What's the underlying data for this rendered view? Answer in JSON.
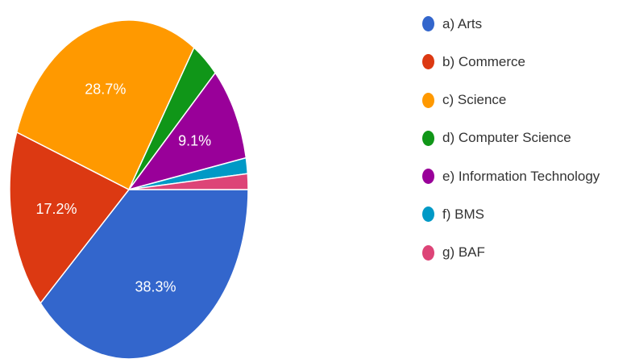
{
  "chart_data": {
    "type": "pie",
    "title": "",
    "categories": [
      "a) Arts",
      "b) Commerce",
      "c) Science",
      "d) Computer Science",
      "e) Information Technology",
      "f) BMS",
      "g) BAF"
    ],
    "values": [
      38.3,
      17.2,
      28.7,
      3.7,
      9.1,
      1.5,
      1.5
    ],
    "slice_labels": [
      "38.3%",
      "17.2%",
      "28.7%",
      "",
      "9.1%",
      "",
      ""
    ],
    "colors": [
      "#3366cc",
      "#dc3912",
      "#ff9900",
      "#109618",
      "#990099",
      "#0099c6",
      "#dd4477"
    ],
    "legend_position": "right"
  }
}
